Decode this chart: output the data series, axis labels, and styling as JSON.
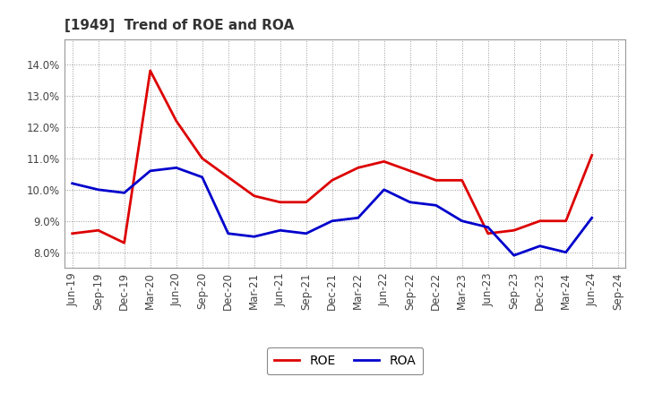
{
  "title": "[1949]  Trend of ROE and ROA",
  "labels": [
    "Jun-19",
    "Sep-19",
    "Dec-19",
    "Mar-20",
    "Jun-20",
    "Sep-20",
    "Dec-20",
    "Mar-21",
    "Jun-21",
    "Sep-21",
    "Dec-21",
    "Mar-22",
    "Jun-22",
    "Sep-22",
    "Dec-22",
    "Mar-23",
    "Jun-23",
    "Sep-23",
    "Dec-23",
    "Mar-24",
    "Jun-24",
    "Sep-24"
  ],
  "ROE": [
    8.6,
    8.7,
    8.3,
    13.8,
    12.2,
    11.0,
    10.4,
    9.8,
    9.6,
    9.6,
    10.3,
    10.7,
    10.9,
    10.6,
    10.3,
    10.3,
    8.6,
    8.7,
    9.0,
    9.0,
    11.1,
    null
  ],
  "ROA": [
    10.2,
    10.0,
    9.9,
    10.6,
    10.7,
    10.4,
    8.6,
    8.5,
    8.7,
    8.6,
    9.0,
    9.1,
    10.0,
    9.6,
    9.5,
    9.0,
    8.8,
    7.9,
    8.2,
    8.0,
    9.1,
    null
  ],
  "roe_color": "#dd0000",
  "roa_color": "#0000cc",
  "ylim": [
    7.5,
    14.8
  ],
  "yticks": [
    8.0,
    9.0,
    10.0,
    11.0,
    12.0,
    13.0,
    14.0
  ],
  "bg_color": "#ffffff",
  "plot_bg_color": "#ffffff",
  "grid_color": "#999999",
  "title_fontsize": 11,
  "legend_fontsize": 10,
  "tick_fontsize": 8.5,
  "line_width": 2.0
}
